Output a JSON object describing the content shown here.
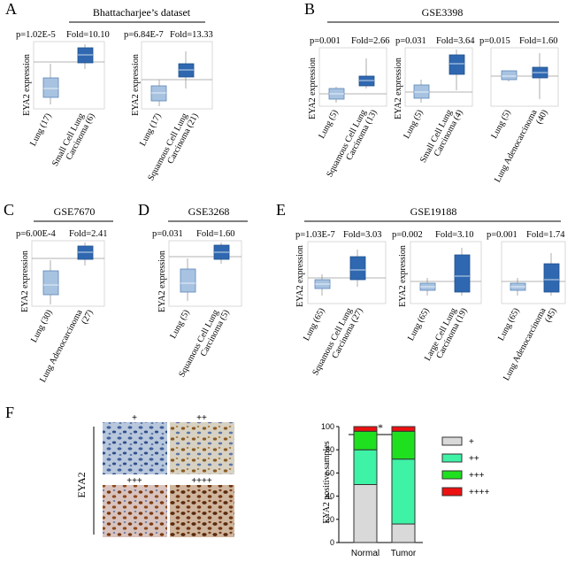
{
  "panels": {
    "A": {
      "letter": "A",
      "title": "Bhattacharjee’s dataset",
      "plots": [
        {
          "p": "p=1.02E-5",
          "fold": "Fold=10.10",
          "ylabel": "EYA2 expression",
          "labels": [
            "Lung (17)",
            "Small Cell Lung",
            "Carcinoma (6)"
          ]
        },
        {
          "p": "p=6.84E-7",
          "fold": "Fold=13.33",
          "ylabel": "EYA2 expression",
          "labels": [
            "Lung (17)",
            "Squamous Cell Lung",
            "Carcinoma (21)"
          ]
        }
      ]
    },
    "B": {
      "letter": "B",
      "title": "GSE3398",
      "plots": [
        {
          "p": "p=0.001",
          "fold": "Fold=2.66",
          "ylabel": "EYA2 expression",
          "labels": [
            "Lung (5)",
            "Squamous Cell Lung",
            "Carcinoma (13)"
          ]
        },
        {
          "p": "p=0.031",
          "fold": "Fold=3.64",
          "ylabel": "EYA2 expression",
          "labels": [
            "Lung (5)",
            "Small Cell Lung",
            "Carcinoma (4)"
          ]
        },
        {
          "p": "p=0.015",
          "fold": "Fold=1.60",
          "ylabel": "",
          "labels": [
            "Lung (5)",
            "Lung Adenocarcinoma",
            "(40)"
          ]
        }
      ]
    },
    "C": {
      "letter": "C",
      "title": "GSE7670",
      "plots": [
        {
          "p": "p=6.00E-4",
          "fold": "Fold=2.41",
          "ylabel": "EYA2 expression",
          "labels": [
            "Lung (30)",
            "Lung Adenocarcinoma",
            "(27)"
          ]
        }
      ]
    },
    "D": {
      "letter": "D",
      "title": "GSE3268",
      "plots": [
        {
          "p": "p=0.031",
          "fold": "Fold=1.60",
          "ylabel": "EYA2 expression",
          "labels": [
            "Lung (5)",
            "Squamous Cell Lung",
            "Carcinoma (5)"
          ]
        }
      ]
    },
    "E": {
      "letter": "E",
      "title": "GSE19188",
      "plots": [
        {
          "p": "p=1.03E-7",
          "fold": "Fold=3.03",
          "ylabel": "EYA2 expression",
          "labels": [
            "Lung (65)",
            "Squamous Cell Lung",
            "Carcinoma (27)"
          ]
        },
        {
          "p": "p=0.002",
          "fold": "Fold=3.10",
          "ylabel": "EYA2 expression",
          "labels": [
            "Lung (65)",
            "Large Cell Lung",
            "Carcinoma (19)"
          ]
        },
        {
          "p": "p=0.001",
          "fold": "Fold=1.74",
          "ylabel": "EYA2 expression",
          "labels": [
            "Lung (65)",
            "Lung Adenocarcinoma",
            "(45)"
          ]
        }
      ]
    },
    "F": {
      "letter": "F",
      "side_label": "EYA2",
      "ihc_labels": [
        "+",
        "++",
        "+++",
        "++++"
      ],
      "significance": "*"
    }
  },
  "colors": {
    "box_light": "#a8c3e1",
    "box_dark": "#2f68b0",
    "lvl1": "#d9d9d9",
    "lvl2": "#3ef2a6",
    "lvl3": "#1fe01f",
    "lvl4": "#ee1111"
  },
  "chart_data": [
    {
      "type": "box",
      "panel": "A",
      "title": "Bhattacharjee’s dataset",
      "series": [
        {
          "name": "Lung (17) vs Small Cell Lung Carcinoma (6)",
          "p": "1.02E-5",
          "fold": 10.1
        },
        {
          "name": "Lung (17) vs Squamous Cell Lung Carcinoma (21)",
          "p": "6.84E-7",
          "fold": 13.33
        }
      ],
      "ylabel": "EYA2 expression"
    },
    {
      "type": "box",
      "panel": "B",
      "title": "GSE3398",
      "series": [
        {
          "name": "Lung (5) vs Squamous Cell Lung Carcinoma (13)",
          "p": "0.001",
          "fold": 2.66
        },
        {
          "name": "Lung (5) vs Small Cell Lung Carcinoma (4)",
          "p": "0.031",
          "fold": 3.64
        },
        {
          "name": "Lung (5) vs Lung Adenocarcinoma (40)",
          "p": "0.015",
          "fold": 1.6
        }
      ],
      "ylabel": "EYA2 expression"
    },
    {
      "type": "box",
      "panel": "C",
      "title": "GSE7670",
      "series": [
        {
          "name": "Lung (30) vs Lung Adenocarcinoma (27)",
          "p": "6.00E-4",
          "fold": 2.41
        }
      ],
      "ylabel": "EYA2 expression"
    },
    {
      "type": "box",
      "panel": "D",
      "title": "GSE3268",
      "series": [
        {
          "name": "Lung (5) vs Squamous Cell Lung Carcinoma (5)",
          "p": "0.031",
          "fold": 1.6
        }
      ],
      "ylabel": "EYA2 expression"
    },
    {
      "type": "box",
      "panel": "E",
      "title": "GSE19188",
      "series": [
        {
          "name": "Lung (65) vs Squamous Cell Lung Carcinoma (27)",
          "p": "1.03E-7",
          "fold": 3.03
        },
        {
          "name": "Lung (65) vs Large Cell Lung Carcinoma (19)",
          "p": "0.002",
          "fold": 3.1
        },
        {
          "name": "Lung (65) vs Lung Adenocarcinoma (45)",
          "p": "0.001",
          "fold": 1.74
        }
      ],
      "ylabel": "EYA2 expression"
    },
    {
      "type": "bar",
      "stacked": true,
      "panel": "F",
      "categories": [
        "Normal",
        "Tumor"
      ],
      "series": [
        {
          "name": "+",
          "values": [
            50,
            16
          ]
        },
        {
          "name": "++",
          "values": [
            30,
            56
          ]
        },
        {
          "name": "+++",
          "values": [
            16,
            24
          ]
        },
        {
          "name": "++++",
          "values": [
            4,
            4
          ]
        }
      ],
      "ylabel": "EYA2 positive samples",
      "ylim": [
        0,
        100
      ],
      "yticks": [
        0,
        20,
        40,
        60,
        80,
        100
      ],
      "significance": "*"
    }
  ]
}
